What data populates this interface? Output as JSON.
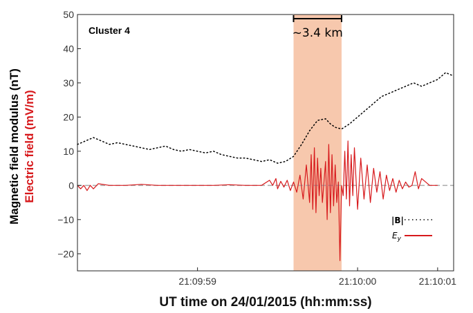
{
  "chart_data": {
    "type": "line",
    "title": "",
    "panel_label": "Cluster 4",
    "xlabel": "UT time on 24/01/2015 (hh:mm:ss)",
    "ylabel_lines": [
      "Magnetic field modulus (nT)",
      "Electric field (mV/m)"
    ],
    "xlim": [
      -1.25,
      1.1
    ],
    "ylim": [
      -25,
      50
    ],
    "xticks": [
      {
        "value": -0.5,
        "label": "21:09:59"
      },
      {
        "value": 0.5,
        "label": "21:10:00"
      },
      {
        "value": 1.0,
        "label": "21:10:01"
      }
    ],
    "yticks": [
      -20,
      -10,
      0,
      10,
      20,
      30,
      40,
      50
    ],
    "zero_line": 0,
    "shaded_interval": {
      "x": [
        0.1,
        0.4
      ],
      "color": "#f7c8ad"
    },
    "annotation": {
      "text": "~3.4 km",
      "x_range": [
        0.1,
        0.4
      ]
    },
    "legend": {
      "placement": "lower-right",
      "entries": [
        {
          "label": "|B|",
          "style": "dotted",
          "color": "#000000"
        },
        {
          "label": "E_y",
          "style": "solid",
          "color": "#d7191c"
        }
      ]
    },
    "series": [
      {
        "name": "|B|",
        "color": "#000000",
        "style": "dotted",
        "x": [
          -1.25,
          -1.2,
          -1.15,
          -1.1,
          -1.05,
          -1.0,
          -0.95,
          -0.9,
          -0.85,
          -0.8,
          -0.75,
          -0.7,
          -0.65,
          -0.6,
          -0.55,
          -0.5,
          -0.45,
          -0.4,
          -0.35,
          -0.3,
          -0.25,
          -0.2,
          -0.15,
          -0.1,
          -0.05,
          0.0,
          0.05,
          0.1,
          0.15,
          0.2,
          0.25,
          0.3,
          0.33,
          0.36,
          0.4,
          0.45,
          0.5,
          0.55,
          0.6,
          0.65,
          0.7,
          0.75,
          0.8,
          0.85,
          0.9,
          0.95,
          1.0,
          1.05,
          1.1
        ],
        "y": [
          12,
          13,
          14,
          13,
          12,
          12.5,
          12,
          11.5,
          11,
          10.5,
          11,
          11.5,
          10.5,
          10,
          10.5,
          10,
          9.5,
          10,
          9,
          8.5,
          8,
          8,
          7.5,
          7,
          7.5,
          6.5,
          7,
          8.5,
          12,
          16,
          19,
          19.5,
          18,
          17,
          16.5,
          18,
          20,
          22,
          24,
          26,
          27,
          28,
          29,
          30,
          29,
          30,
          31,
          33,
          32
        ]
      },
      {
        "name": "E_y",
        "color": "#d7191c",
        "style": "solid",
        "x": [
          -1.25,
          -1.23,
          -1.21,
          -1.19,
          -1.17,
          -1.15,
          -1.12,
          -1.05,
          -0.95,
          -0.85,
          -0.75,
          -0.6,
          -0.5,
          -0.4,
          -0.3,
          -0.2,
          -0.1,
          -0.05,
          -0.03,
          -0.01,
          0.0,
          0.02,
          0.04,
          0.06,
          0.08,
          0.1,
          0.12,
          0.14,
          0.16,
          0.18,
          0.2,
          0.21,
          0.22,
          0.23,
          0.24,
          0.25,
          0.26,
          0.27,
          0.28,
          0.3,
          0.31,
          0.32,
          0.33,
          0.34,
          0.35,
          0.36,
          0.37,
          0.38,
          0.39,
          0.4,
          0.41,
          0.42,
          0.43,
          0.44,
          0.45,
          0.46,
          0.47,
          0.48,
          0.5,
          0.52,
          0.54,
          0.56,
          0.58,
          0.6,
          0.62,
          0.64,
          0.66,
          0.68,
          0.7,
          0.72,
          0.74,
          0.76,
          0.78,
          0.8,
          0.82,
          0.84,
          0.86,
          0.88,
          0.9,
          0.95,
          1.0
        ],
        "y": [
          0,
          -1,
          0,
          -1.5,
          0,
          -1,
          0.5,
          0,
          0,
          0.3,
          0,
          0,
          0,
          0,
          0.2,
          0,
          0,
          1.5,
          0,
          2,
          -1,
          1.2,
          -0.5,
          1.5,
          -1.5,
          1,
          -2,
          3,
          -4,
          6,
          -5,
          9,
          -7,
          11,
          -8,
          8,
          -3,
          5,
          -5,
          7,
          -10,
          12,
          -8,
          9,
          -6,
          6,
          -5,
          1,
          -22,
          0,
          -3,
          10,
          -4,
          13,
          -6,
          9,
          -3,
          11,
          -7,
          8,
          -4,
          6,
          -5,
          5,
          -2,
          4,
          -4,
          3,
          -1.5,
          2,
          -2,
          1.5,
          -1,
          1,
          -0.5,
          0,
          4,
          -1,
          2,
          0,
          0
        ]
      }
    ]
  }
}
